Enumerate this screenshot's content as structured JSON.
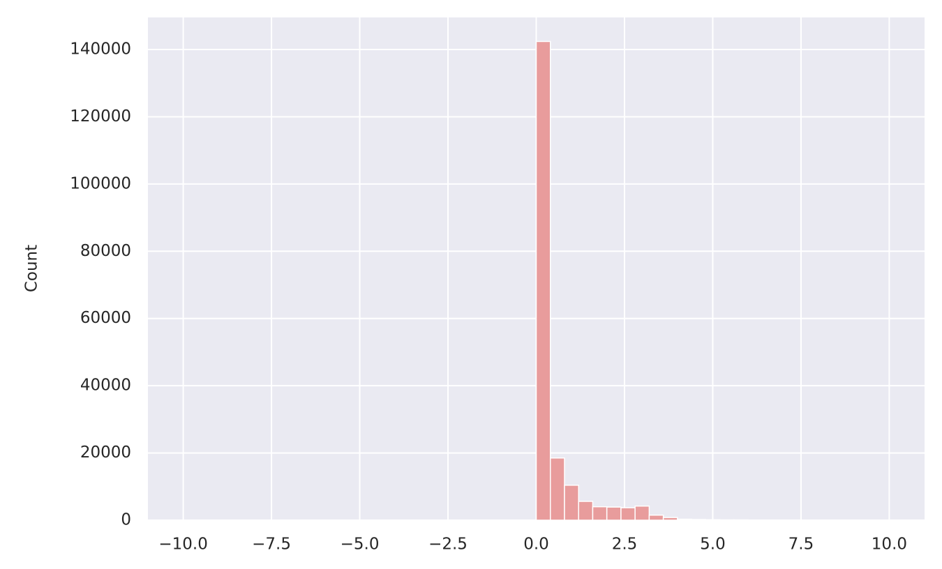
{
  "chart_data": {
    "type": "histogram",
    "ylabel": "Count",
    "bins": [
      -10,
      -9.6,
      -9.2,
      -8.8,
      -8.4,
      -8,
      -7.6,
      -7.2,
      -6.8,
      -6.4,
      -6,
      -5.6,
      -5.2,
      -4.8,
      -4.4,
      -4,
      -3.6,
      -3.2,
      -2.8,
      -2.4,
      -2,
      -1.6,
      -1.2,
      -0.8,
      -0.4,
      0,
      0.4,
      0.8,
      1.2,
      1.6,
      2,
      2.4,
      2.8,
      3.2,
      3.6,
      4,
      4.4,
      4.8,
      5.2,
      5.6,
      6,
      6.4,
      6.8,
      7.2,
      7.6,
      8,
      8.4,
      8.8,
      9.2,
      9.6,
      10
    ],
    "values": [
      0,
      0,
      0,
      0,
      0,
      0,
      0,
      0,
      0,
      0,
      0,
      0,
      0,
      0,
      0,
      0,
      0,
      0,
      0,
      0,
      0,
      0,
      0,
      0,
      0,
      142400,
      18500,
      10400,
      5600,
      4000,
      3900,
      3700,
      4200,
      1500,
      800,
      300,
      200,
      150,
      100,
      100,
      50,
      30,
      20,
      0,
      0,
      0,
      0,
      0,
      0,
      0
    ],
    "color": "#e89c9c",
    "xlim": [
      -11,
      11
    ],
    "ylim": [
      0,
      149550
    ],
    "xticks": [
      {
        "value": -10,
        "label": "−10.0"
      },
      {
        "value": -7.5,
        "label": "−7.5"
      },
      {
        "value": -5,
        "label": "−5.0"
      },
      {
        "value": -2.5,
        "label": "−2.5"
      },
      {
        "value": 0,
        "label": "0.0"
      },
      {
        "value": 2.5,
        "label": "2.5"
      },
      {
        "value": 5,
        "label": "5.0"
      },
      {
        "value": 7.5,
        "label": "7.5"
      },
      {
        "value": 10,
        "label": "10.0"
      }
    ],
    "yticks": [
      0,
      20000,
      40000,
      60000,
      80000,
      100000,
      120000,
      140000
    ],
    "grid": true
  }
}
